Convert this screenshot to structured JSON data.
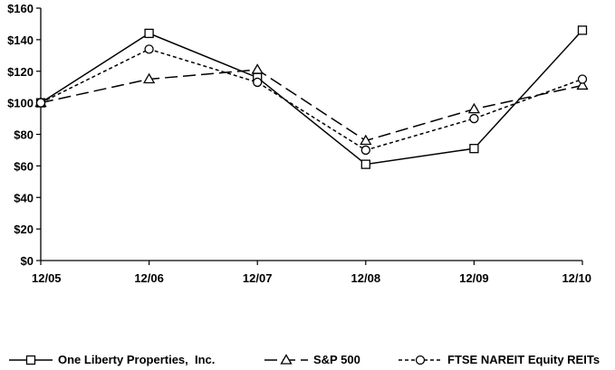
{
  "chart_data": {
    "type": "line",
    "title": "",
    "xlabel": "",
    "ylabel": "",
    "categories": [
      "12/05",
      "12/06",
      "12/07",
      "12/08",
      "12/09",
      "12/10"
    ],
    "ylim": [
      0,
      160
    ],
    "yticks": [
      0,
      20,
      40,
      60,
      80,
      100,
      120,
      140,
      160
    ],
    "ytick_labels": [
      "$0",
      "$20",
      "$40",
      "$60",
      "$80",
      "$100",
      "$120",
      "$140",
      "$160"
    ],
    "grid": false,
    "legend_position": "bottom",
    "series": [
      {
        "name": "One Liberty Properties,  Inc.",
        "values": [
          100,
          144,
          116,
          61,
          71,
          146
        ],
        "marker": "square",
        "dash": "solid",
        "color": "#000000"
      },
      {
        "name": "S&P 500",
        "values": [
          100,
          115,
          121,
          76,
          96,
          111
        ],
        "marker": "triangle",
        "dash": "long-dash",
        "color": "#000000"
      },
      {
        "name": "FTSE NAREIT Equity REITs",
        "values": [
          100,
          134,
          113,
          70,
          90,
          115
        ],
        "marker": "circle",
        "dash": "short-dash",
        "color": "#000000"
      }
    ]
  }
}
